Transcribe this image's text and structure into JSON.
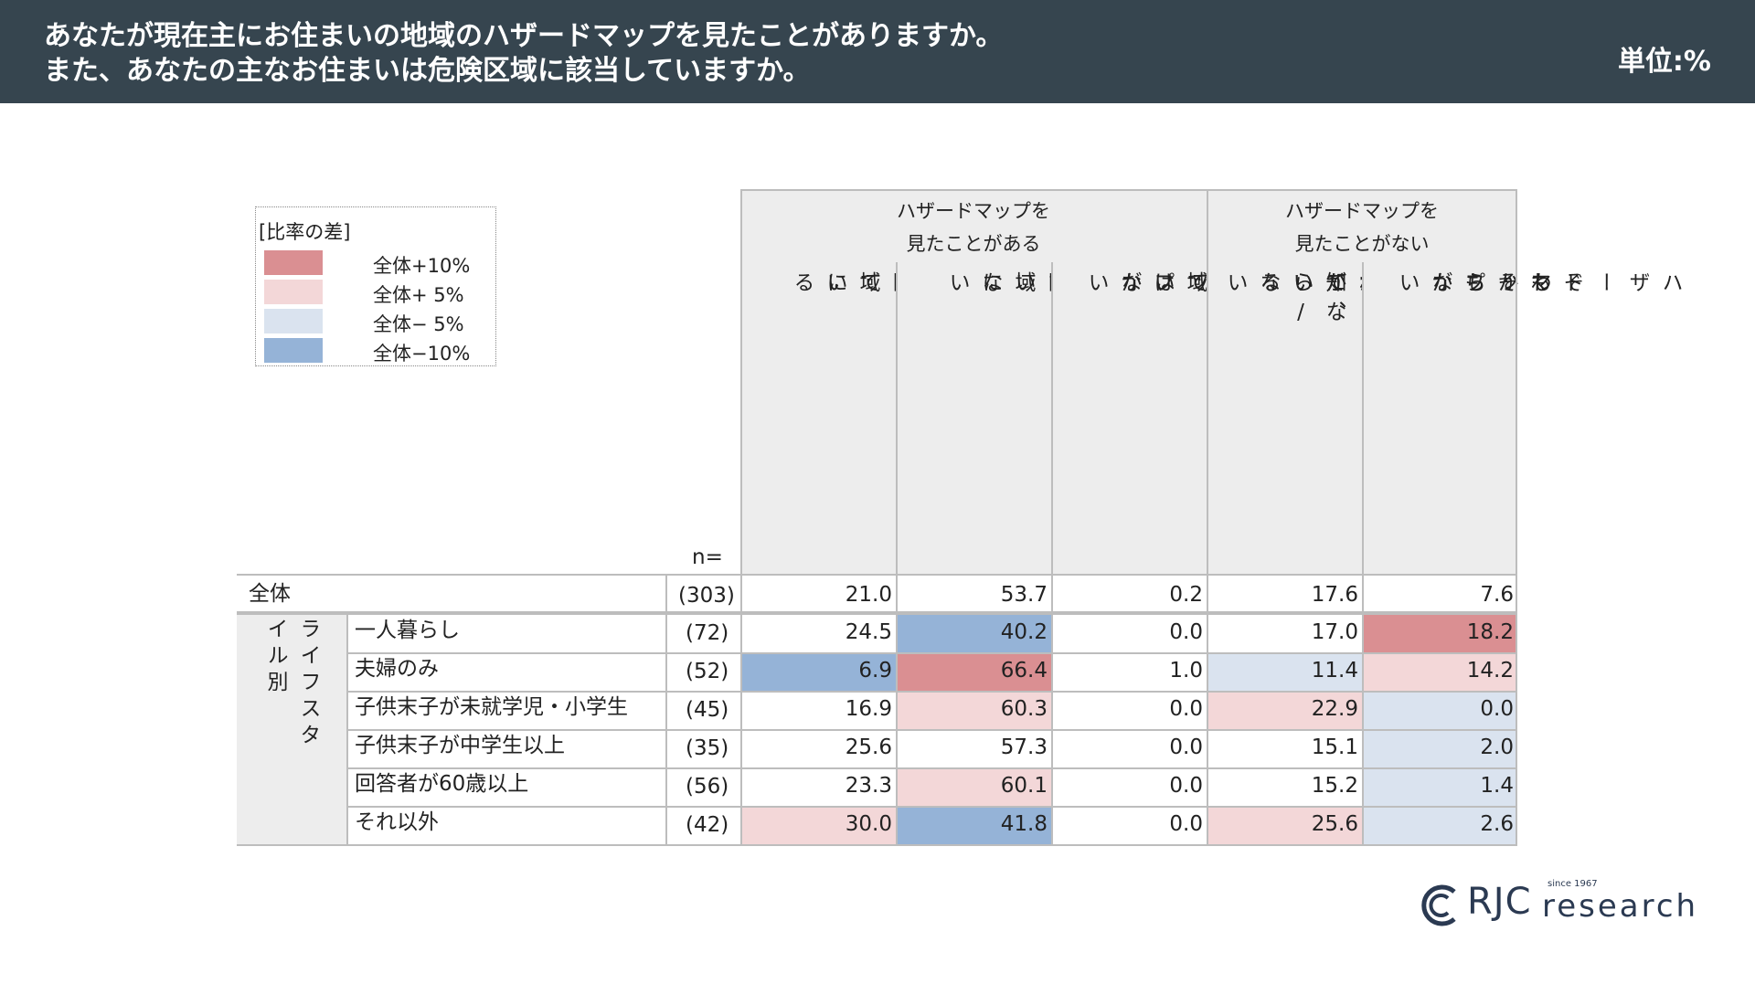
{
  "header": {
    "title_line1": "あなたが現在主にお住まいの地域のハザードマップを見たことがありますか。",
    "title_line2": "また、あなたの主なお住まいは危険区域に該当していますか。",
    "unit": "単位:%"
  },
  "legend": {
    "title": "[比率の差]",
    "items": [
      {
        "label": "全体+10%",
        "color": "#da8f92"
      },
      {
        "label": "全体+ 5%",
        "color": "#f3d7d8"
      },
      {
        "label": "全体− 5%",
        "color": "#dae3ef"
      },
      {
        "label": "全体−10%",
        "color": "#95b3d7"
      }
    ]
  },
  "table": {
    "n_label": "n=",
    "group_headers": [
      "ハザードマップを\n見たことがある",
      "ハザードマップを\n見たことがない"
    ],
    "segment_label": "ライフスタイル別",
    "total": {
      "label": "全体",
      "n": "(303)",
      "values": [
        "21.0",
        "53.7",
        "0.2",
        "17.6",
        "7.6"
      ]
    }
  },
  "chart_data": {
    "type": "table",
    "title": "あなたが現在主にお住まいの地域のハザードマップを見たことがありますか。また、あなたの主なお住まいは危険区域に該当していますか。",
    "unit": "単位:%",
    "column_groups": [
      {
        "name": "ハザードマップを見たことがある",
        "columns": [
          "危険区域に該当している",
          "危険区域に該当していない",
          "自身の地域はハザードマップが公表されていない"
        ]
      },
      {
        "name": "ハザードマップを見たことがない",
        "columns": [
          "知っているが、見たことがない/公表されているかどうか知らない",
          "そもそもハザードマップがわからない"
        ]
      }
    ],
    "columns": [
      {
        "lines": [
          "危険区域に",
          "該当している"
        ]
      },
      {
        "lines": [
          "危険区域に",
          "該当していない"
        ]
      },
      {
        "lines": [
          "自身の地域は",
          "ハザードマップが",
          "公表されていない"
        ]
      },
      {
        "lines": [
          "知っているが、",
          "見たことがない/",
          "公表されている",
          "かどうか知らない"
        ]
      },
      {
        "lines": [
          "そもそも",
          "ハザードマップが",
          "わからない"
        ]
      }
    ],
    "rows": [
      {
        "label": "一人暮らし",
        "n": "(72)",
        "values": [
          24.5,
          40.2,
          0.0,
          17.0,
          18.2
        ],
        "highlight": [
          "",
          "minus10",
          "",
          "",
          "plus10"
        ]
      },
      {
        "label": "夫婦のみ",
        "n": "(52)",
        "values": [
          6.9,
          66.4,
          1.0,
          11.4,
          14.2
        ],
        "highlight": [
          "minus10",
          "plus10",
          "",
          "minus5",
          "plus5"
        ]
      },
      {
        "label": "子供末子が未就学児・小学生",
        "n": "(45)",
        "values": [
          16.9,
          60.3,
          0.0,
          22.9,
          0.0
        ],
        "highlight": [
          "",
          "plus5",
          "",
          "plus5",
          "minus5"
        ]
      },
      {
        "label": "子供末子が中学生以上",
        "n": "(35)",
        "values": [
          25.6,
          57.3,
          0.0,
          15.1,
          2.0
        ],
        "highlight": [
          "",
          "",
          "",
          "",
          "minus5"
        ]
      },
      {
        "label": "回答者が60歳以上",
        "n": "(56)",
        "values": [
          23.3,
          60.1,
          0.0,
          15.2,
          1.4
        ],
        "highlight": [
          "",
          "plus5",
          "",
          "",
          "minus5"
        ]
      },
      {
        "label": "それ以外",
        "n": "(42)",
        "values": [
          30.0,
          41.8,
          0.0,
          25.6,
          2.6
        ],
        "highlight": [
          "plus5",
          "minus10",
          "",
          "plus5",
          "minus5"
        ]
      }
    ]
  },
  "logo": {
    "name": "RJC",
    "suffix": "research",
    "since": "since 1967"
  }
}
